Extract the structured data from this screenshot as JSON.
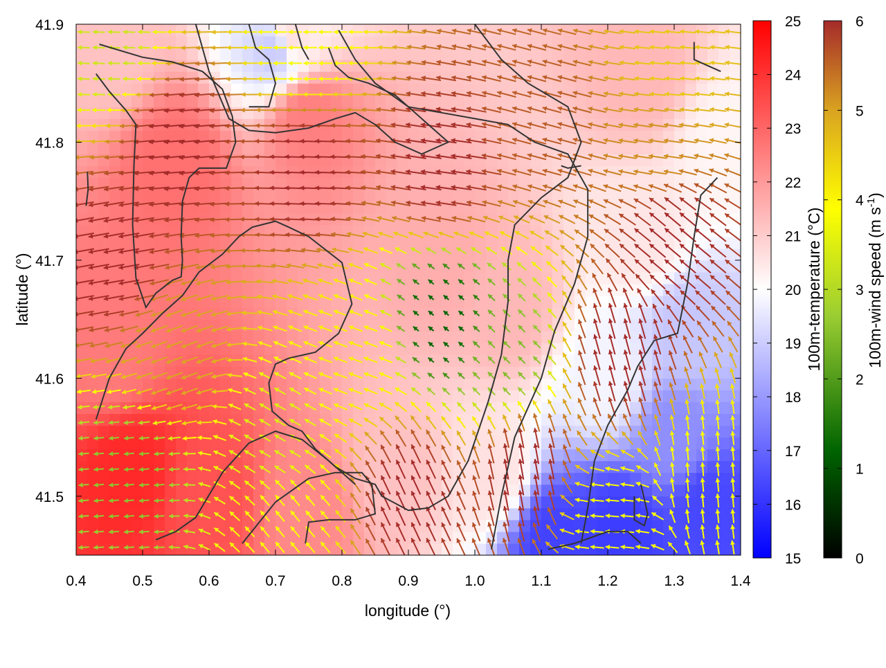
{
  "chart_data": {
    "type": "heatmap",
    "subtype": "temperature field with wind-vector overlay and contour lines",
    "xlabel": "longitude (°)",
    "ylabel": "latitude (°)",
    "xlim": [
      0.4,
      1.4
    ],
    "ylim": [
      41.45,
      41.9
    ],
    "x_ticks": [
      "0.4",
      "0.5",
      "0.6",
      "0.7",
      "0.8",
      "0.9",
      "1.0",
      "1.1",
      "1.2",
      "1.3",
      "1.4"
    ],
    "y_ticks": [
      "41.5",
      "41.6",
      "41.7",
      "41.8",
      "41.9"
    ],
    "x_tick_values": [
      0.4,
      0.5,
      0.6,
      0.7,
      0.8,
      0.9,
      1.0,
      1.1,
      1.2,
      1.3,
      1.4
    ],
    "y_tick_values": [
      41.5,
      41.6,
      41.7,
      41.8,
      41.9
    ],
    "grid": false,
    "temperature_colorbar": {
      "label": "100m-temperature (°C)",
      "range": [
        15,
        25
      ],
      "ticks": [
        "15",
        "16",
        "17",
        "18",
        "19",
        "20",
        "21",
        "22",
        "23",
        "24",
        "25"
      ],
      "tick_values": [
        15,
        16,
        17,
        18,
        19,
        20,
        21,
        22,
        23,
        24,
        25
      ],
      "colors": [
        "#0000ff",
        "#ffffff",
        "#ff0000"
      ]
    },
    "wind_colorbar": {
      "label_main": "100m-wind speed (m s",
      "label_sup": "-1",
      "label_end": ")",
      "range": [
        0,
        6
      ],
      "ticks": [
        "0",
        "1",
        "2",
        "3",
        "4",
        "5",
        "6"
      ],
      "tick_values": [
        0,
        1,
        2,
        3,
        4,
        5,
        6
      ],
      "colors": [
        "#000000",
        "#006400",
        "#9acd32",
        "#ffff00",
        "#daa520",
        "#a52a2a"
      ]
    },
    "temperature_regions": [
      {
        "lon": 0.55,
        "lat": 41.78,
        "t": 22.8
      },
      {
        "lon": 0.75,
        "lat": 41.82,
        "t": 22.5
      },
      {
        "lon": 0.48,
        "lat": 41.52,
        "t": 24.2
      },
      {
        "lon": 0.6,
        "lat": 41.5,
        "t": 23.4
      },
      {
        "lon": 0.45,
        "lat": 41.62,
        "t": 22.6
      },
      {
        "lon": 0.75,
        "lat": 41.49,
        "t": 22.3
      },
      {
        "lon": 0.95,
        "lat": 41.7,
        "t": 21.6
      },
      {
        "lon": 1.05,
        "lat": 41.66,
        "t": 21.4
      },
      {
        "lon": 0.45,
        "lat": 41.88,
        "t": 21.2
      },
      {
        "lon": 0.72,
        "lat": 41.89,
        "t": 20.6
      },
      {
        "lon": 0.7,
        "lat": 41.88,
        "t": 19.0
      },
      {
        "lon": 1.25,
        "lat": 41.86,
        "t": 21.4
      },
      {
        "lon": 1.25,
        "lat": 41.72,
        "t": 20.5
      },
      {
        "lon": 1.2,
        "lat": 41.6,
        "t": 19.8
      },
      {
        "lon": 1.3,
        "lat": 41.55,
        "t": 17.8
      },
      {
        "lon": 1.32,
        "lat": 41.64,
        "t": 18.9
      },
      {
        "lon": 1.22,
        "lat": 41.47,
        "t": 16.2
      },
      {
        "lon": 1.12,
        "lat": 41.46,
        "t": 16.3
      },
      {
        "lon": 1.35,
        "lat": 41.49,
        "t": 16.4
      },
      {
        "lon": 1.02,
        "lat": 41.52,
        "t": 20.6
      },
      {
        "lon": 0.88,
        "lat": 41.52,
        "t": 21.2
      },
      {
        "lon": 1.38,
        "lat": 41.8,
        "t": 20.2
      }
    ],
    "wind_regions": [
      {
        "lon": 0.55,
        "lat": 41.8,
        "speed": 6.0,
        "dir_deg": 185
      },
      {
        "lon": 0.75,
        "lat": 41.78,
        "speed": 6.0,
        "dir_deg": 178
      },
      {
        "lon": 0.95,
        "lat": 41.78,
        "speed": 6.0,
        "dir_deg": 172
      },
      {
        "lon": 1.1,
        "lat": 41.82,
        "speed": 5.5,
        "dir_deg": 165
      },
      {
        "lon": 1.3,
        "lat": 41.86,
        "speed": 4.3,
        "dir_deg": 175
      },
      {
        "lon": 0.45,
        "lat": 41.7,
        "speed": 6.0,
        "dir_deg": 190
      },
      {
        "lon": 0.55,
        "lat": 41.62,
        "speed": 4.8,
        "dir_deg": 200
      },
      {
        "lon": 0.48,
        "lat": 41.52,
        "speed": 2.3,
        "dir_deg": 185
      },
      {
        "lon": 0.7,
        "lat": 41.55,
        "speed": 3.2,
        "dir_deg": 150
      },
      {
        "lon": 0.82,
        "lat": 41.62,
        "speed": 3.8,
        "dir_deg": 160
      },
      {
        "lon": 0.95,
        "lat": 41.65,
        "speed": 1.2,
        "dir_deg": 140
      },
      {
        "lon": 1.05,
        "lat": 41.62,
        "speed": 2.2,
        "dir_deg": 135
      },
      {
        "lon": 0.9,
        "lat": 41.5,
        "speed": 6.0,
        "dir_deg": 115
      },
      {
        "lon": 1.08,
        "lat": 41.52,
        "speed": 6.0,
        "dir_deg": 100
      },
      {
        "lon": 1.22,
        "lat": 41.62,
        "speed": 6.0,
        "dir_deg": 105
      },
      {
        "lon": 1.3,
        "lat": 41.72,
        "speed": 6.0,
        "dir_deg": 140
      },
      {
        "lon": 1.2,
        "lat": 41.48,
        "speed": 3.5,
        "dir_deg": 175
      },
      {
        "lon": 1.35,
        "lat": 41.52,
        "speed": 3.6,
        "dir_deg": 95
      },
      {
        "lon": 0.75,
        "lat": 41.88,
        "speed": 3.5,
        "dir_deg": 180
      },
      {
        "lon": 0.45,
        "lat": 41.88,
        "speed": 3.0,
        "dir_deg": 178
      },
      {
        "lon": 0.72,
        "lat": 41.48,
        "speed": 3.6,
        "dir_deg": 130
      },
      {
        "lon": 1.28,
        "lat": 41.8,
        "speed": 5.0,
        "dir_deg": 172
      }
    ],
    "contours": [
      [
        [
          0.415,
          41.746
        ],
        [
          0.418,
          41.76
        ],
        [
          0.417,
          41.775
        ]
      ],
      [
        [
          0.435,
          41.883
        ],
        [
          0.5,
          41.872
        ],
        [
          0.545,
          41.868
        ],
        [
          0.59,
          41.86
        ],
        [
          0.62,
          41.845
        ],
        [
          0.635,
          41.822
        ],
        [
          0.64,
          41.8
        ],
        [
          0.626,
          41.778
        ],
        [
          0.585,
          41.778
        ],
        [
          0.57,
          41.77
        ],
        [
          0.56,
          41.75
        ],
        [
          0.558,
          41.72
        ],
        [
          0.56,
          41.7
        ],
        [
          0.558,
          41.686
        ],
        [
          0.545,
          41.683
        ],
        [
          0.52,
          41.672
        ],
        [
          0.505,
          41.66
        ],
        [
          0.49,
          41.685
        ],
        [
          0.485,
          41.73
        ],
        [
          0.487,
          41.78
        ],
        [
          0.49,
          41.815
        ],
        [
          0.475,
          41.827
        ],
        [
          0.45,
          41.843
        ],
        [
          0.43,
          41.858
        ]
      ],
      [
        [
          0.43,
          41.565
        ],
        [
          0.45,
          41.6
        ],
        [
          0.475,
          41.625
        ],
        [
          0.5,
          41.638
        ],
        [
          0.53,
          41.655
        ],
        [
          0.56,
          41.67
        ],
        [
          0.585,
          41.69
        ],
        [
          0.62,
          41.705
        ],
        [
          0.645,
          41.72
        ],
        [
          0.665,
          41.728
        ],
        [
          0.7,
          41.733
        ],
        [
          0.72,
          41.728
        ],
        [
          0.75,
          41.72
        ],
        [
          0.8,
          41.698
        ],
        [
          0.815,
          41.663
        ],
        [
          0.795,
          41.638
        ],
        [
          0.76,
          41.622
        ],
        [
          0.72,
          41.617
        ],
        [
          0.7,
          41.612
        ],
        [
          0.69,
          41.596
        ],
        [
          0.695,
          41.572
        ],
        [
          0.72,
          41.56
        ],
        [
          0.74,
          41.555
        ],
        [
          0.76,
          41.54
        ],
        [
          0.79,
          41.525
        ],
        [
          0.82,
          41.515
        ],
        [
          0.85,
          41.51
        ],
        [
          0.86,
          41.5
        ],
        [
          0.9,
          41.488
        ],
        [
          0.93,
          41.49
        ],
        [
          0.96,
          41.5
        ],
        [
          0.99,
          41.53
        ],
        [
          1.02,
          41.58
        ],
        [
          1.04,
          41.62
        ],
        [
          1.05,
          41.665
        ],
        [
          1.05,
          41.7
        ],
        [
          1.06,
          41.73
        ],
        [
          1.1,
          41.753
        ],
        [
          1.14,
          41.77
        ],
        [
          1.16,
          41.8
        ],
        [
          1.14,
          41.83
        ],
        [
          1.08,
          41.85
        ],
        [
          1.04,
          41.87
        ],
        [
          1.0,
          41.9
        ]
      ],
      [
        [
          0.52,
          41.463
        ],
        [
          0.55,
          41.47
        ],
        [
          0.58,
          41.482
        ],
        [
          0.62,
          41.52
        ],
        [
          0.66,
          41.545
        ],
        [
          0.7,
          41.555
        ],
        [
          0.74,
          41.548
        ],
        [
          0.78,
          41.53
        ],
        [
          0.82,
          41.51
        ]
      ],
      [
        [
          0.65,
          41.46
        ],
        [
          0.7,
          41.495
        ],
        [
          0.75,
          41.515
        ],
        [
          0.79,
          41.52
        ],
        [
          0.83,
          41.52
        ],
        [
          0.845,
          41.51
        ],
        [
          0.85,
          41.485
        ],
        [
          0.82,
          41.48
        ],
        [
          0.78,
          41.48
        ],
        [
          0.75,
          41.478
        ],
        [
          0.745,
          41.46
        ]
      ],
      [
        [
          0.58,
          41.9
        ],
        [
          0.6,
          41.86
        ],
        [
          0.63,
          41.82
        ],
        [
          0.66,
          41.81
        ],
        [
          0.7,
          41.808
        ],
        [
          0.75,
          41.812
        ],
        [
          0.79,
          41.82
        ],
        [
          0.82,
          41.825
        ],
        [
          0.85,
          41.815
        ],
        [
          0.88,
          41.8
        ],
        [
          0.92,
          41.79
        ],
        [
          0.96,
          41.8
        ],
        [
          0.92,
          41.82
        ],
        [
          0.88,
          41.84
        ],
        [
          0.84,
          41.85
        ],
        [
          0.81,
          41.855
        ],
        [
          0.79,
          41.865
        ],
        [
          0.78,
          41.88
        ]
      ],
      [
        [
          0.795,
          41.895
        ],
        [
          0.82,
          41.87
        ],
        [
          0.85,
          41.85
        ],
        [
          0.9,
          41.83
        ],
        [
          0.95,
          41.825
        ],
        [
          1.0,
          41.82
        ],
        [
          1.05,
          41.815
        ],
        [
          1.09,
          41.8
        ],
        [
          1.14,
          41.79
        ],
        [
          1.17,
          41.76
        ],
        [
          1.17,
          41.72
        ],
        [
          1.15,
          41.68
        ],
        [
          1.12,
          41.64
        ],
        [
          1.1,
          41.6
        ],
        [
          1.06,
          41.55
        ],
        [
          1.04,
          41.5
        ],
        [
          1.025,
          41.455
        ]
      ],
      [
        [
          1.365,
          41.77
        ],
        [
          1.34,
          41.755
        ],
        [
          1.33,
          41.72
        ],
        [
          1.32,
          41.68
        ],
        [
          1.305,
          41.638
        ],
        [
          1.27,
          41.632
        ],
        [
          1.245,
          41.61
        ],
        [
          1.23,
          41.59
        ],
        [
          1.2,
          41.56
        ],
        [
          1.18,
          41.53
        ],
        [
          1.17,
          41.49
        ],
        [
          1.16,
          41.46
        ]
      ],
      [
        [
          1.25,
          41.51
        ],
        [
          1.26,
          41.485
        ],
        [
          1.255,
          41.475
        ],
        [
          1.24,
          41.48
        ],
        [
          1.24,
          41.5
        ]
      ],
      [
        [
          1.11,
          41.455
        ],
        [
          1.15,
          41.46
        ],
        [
          1.2,
          41.47
        ],
        [
          1.23,
          41.47
        ],
        [
          1.25,
          41.46
        ]
      ],
      [
        [
          0.66,
          41.9
        ],
        [
          0.67,
          41.88
        ],
        [
          0.69,
          41.87
        ],
        [
          0.7,
          41.85
        ],
        [
          0.69,
          41.83
        ],
        [
          0.66,
          41.83
        ]
      ],
      [
        [
          0.73,
          41.9
        ],
        [
          0.74,
          41.88
        ],
        [
          0.75,
          41.87
        ]
      ],
      [
        [
          1.33,
          41.885
        ],
        [
          1.33,
          41.87
        ],
        [
          1.37,
          41.86
        ]
      ],
      [
        [
          1.16,
          41.78
        ],
        [
          1.14,
          41.778
        ],
        [
          1.13,
          41.78
        ]
      ]
    ]
  }
}
